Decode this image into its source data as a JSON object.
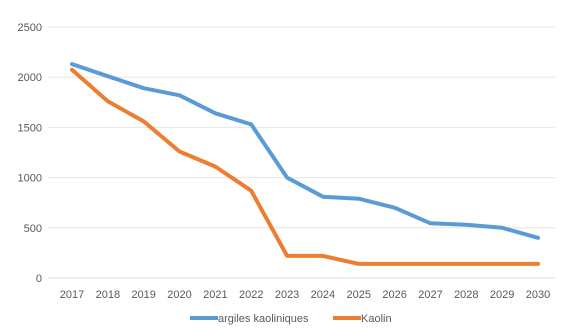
{
  "chart_data": {
    "type": "line",
    "title": "",
    "xlabel": "",
    "ylabel": "",
    "categories": [
      "2017",
      "2018",
      "2019",
      "2020",
      "2021",
      "2022",
      "2023",
      "2024",
      "2025",
      "2026",
      "2027",
      "2028",
      "2029",
      "2030"
    ],
    "ylim": [
      0,
      2500
    ],
    "yticks": [
      0,
      500,
      1000,
      1500,
      2000,
      2500
    ],
    "grid": true,
    "legend_position": "bottom",
    "series": [
      {
        "name": "argiles kaoliniques",
        "color": "#5b9bd5",
        "values": [
          2130,
          2010,
          1890,
          1820,
          1640,
          1530,
          1000,
          810,
          790,
          700,
          545,
          530,
          500,
          400
        ]
      },
      {
        "name": "Kaolin",
        "color": "#ed7d31",
        "values": [
          2075,
          1760,
          1560,
          1260,
          1110,
          870,
          220,
          220,
          140,
          140,
          140,
          140,
          140,
          140
        ]
      }
    ]
  }
}
